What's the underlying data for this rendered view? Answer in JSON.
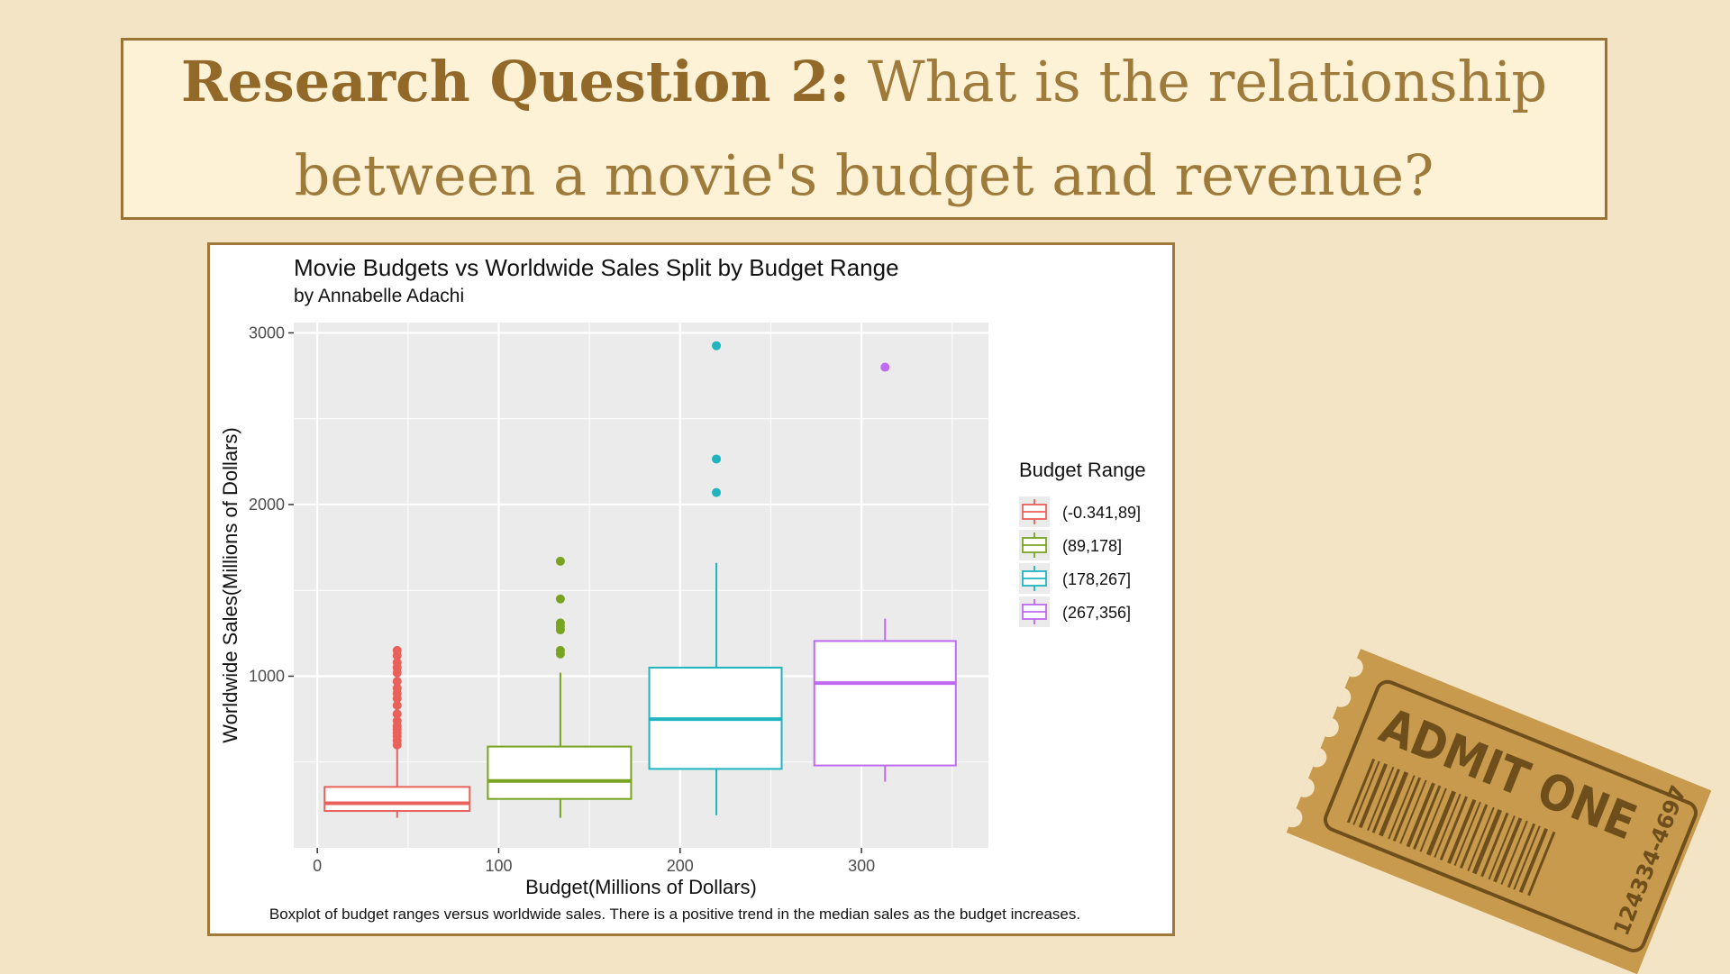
{
  "slide": {
    "heading_bold": "Research Question 2:",
    "heading_rest": "What is the relationship",
    "heading_line2": "between a movie's budget and revenue?"
  },
  "ticket": {
    "label": "ADMIT ONE",
    "number": "124334-4697"
  },
  "chart_data": {
    "type": "box",
    "title": "Movie Budgets vs Worldwide Sales Split by Budget Range",
    "subtitle": "by Annabelle Adachi",
    "xlabel": "Budget(Millions of Dollars)",
    "ylabel": "Worldwide Sales(Millions of Dollars)",
    "caption": "Boxplot of budget ranges versus worldwide sales. There is a positive trend in the median sales as the budget increases.",
    "xlim": [
      -13,
      370
    ],
    "ylim": [
      0,
      3060
    ],
    "x_ticks": [
      0,
      100,
      200,
      300
    ],
    "y_ticks": [
      1000,
      2000,
      3000
    ],
    "grid": true,
    "legend_title": "Budget Range",
    "legend_position": "right",
    "series": [
      {
        "name": "(-0.341,89]",
        "color": "#e8625b",
        "x_left": 4,
        "x_right": 84,
        "x_center": 44,
        "whisker_low": 175,
        "q1": 215,
        "median": 260,
        "q3": 355,
        "whisker_high": 585,
        "outliers": [
          600,
          625,
          650,
          670,
          690,
          710,
          740,
          780,
          830,
          870,
          900,
          930,
          970,
          1020,
          1050,
          1080,
          1120,
          1150
        ]
      },
      {
        "name": "(89,178]",
        "color": "#79a421",
        "x_left": 94,
        "x_right": 173,
        "x_center": 134,
        "whisker_low": 175,
        "q1": 285,
        "median": 390,
        "q3": 590,
        "whisker_high": 1020,
        "outliers": [
          1130,
          1150,
          1270,
          1290,
          1310,
          1450,
          1670
        ]
      },
      {
        "name": "(178,267]",
        "color": "#1fb4be",
        "x_left": 183,
        "x_right": 256,
        "x_center": 220,
        "whisker_low": 190,
        "q1": 460,
        "median": 750,
        "q3": 1050,
        "whisker_high": 1660,
        "outliers": [
          2070,
          2265,
          2925
        ]
      },
      {
        "name": "(267,356]",
        "color": "#c06af0",
        "x_left": 274,
        "x_right": 352,
        "x_center": 313,
        "whisker_low": 385,
        "q1": 480,
        "median": 960,
        "q3": 1205,
        "whisker_high": 1335,
        "outliers": [
          2800
        ]
      }
    ]
  }
}
